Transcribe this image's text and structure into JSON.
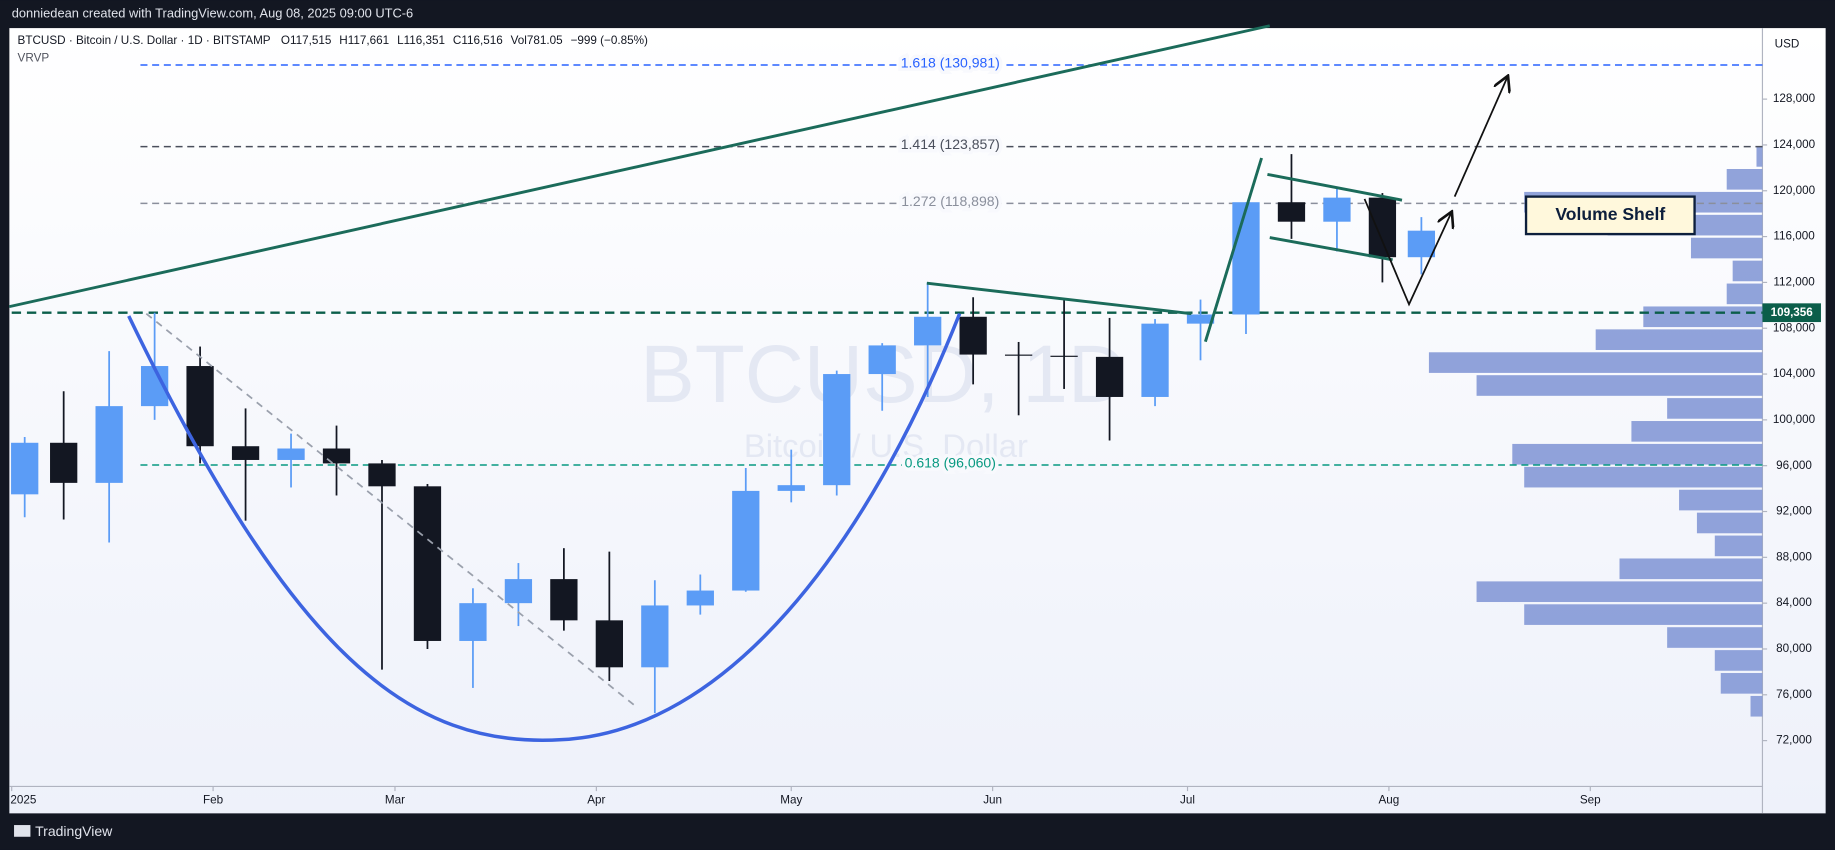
{
  "header": {
    "credit": "donniedean created with TradingView.com, Aug 08, 2025 09:00 UTC-6"
  },
  "footer": {
    "brand": "TradingView"
  },
  "chart_data": {
    "type": "candlestick",
    "legend": {
      "symbol": "BTCUSD · Bitcoin / U.S. Dollar · 1D · BITSTAMP",
      "open": "O117,515",
      "high": "H117,661",
      "low": "L116,351",
      "close": "C116,516",
      "volume": "Vol781.05",
      "change": "−999 (−0.85%)",
      "indicator": "VRVP"
    },
    "currency": "USD",
    "watermark": {
      "symbol": "BTCUSD, 1D",
      "name": "Bitcoin / U.S. Dollar"
    },
    "annotation": "Volume Shelf",
    "up_color": "#5b9cf6",
    "down_color": "#131722",
    "xlim": [
      0,
      269.5
    ],
    "xticks": [
      {
        "value": 0,
        "label": "2025"
      },
      {
        "value": 31,
        "label": "Feb"
      },
      {
        "value": 59,
        "label": "Mar"
      },
      {
        "value": 90,
        "label": "Apr"
      },
      {
        "value": 120,
        "label": "May"
      },
      {
        "value": 151,
        "label": "Jun"
      },
      {
        "value": 181,
        "label": "Jul"
      },
      {
        "value": 212,
        "label": "Aug"
      },
      {
        "value": 243,
        "label": "Sep"
      }
    ],
    "ylim": [
      68000,
      134200
    ],
    "yticks": [
      {
        "value": 72000,
        "label": "72,000"
      },
      {
        "value": 76000,
        "label": "76,000"
      },
      {
        "value": 80000,
        "label": "80,000"
      },
      {
        "value": 84000,
        "label": "84,000"
      },
      {
        "value": 88000,
        "label": "88,000"
      },
      {
        "value": 92000,
        "label": "92,000"
      },
      {
        "value": 96000,
        "label": "96,000"
      },
      {
        "value": 100000,
        "label": "100,000"
      },
      {
        "value": 104000,
        "label": "104,000"
      },
      {
        "value": 108000,
        "label": "108,000"
      },
      {
        "value": 112000,
        "label": "112,000"
      },
      {
        "value": 116000,
        "label": "116,000"
      },
      {
        "value": 120000,
        "label": "120,000"
      },
      {
        "value": 124000,
        "label": "124,000"
      },
      {
        "value": 128000,
        "label": "128,000"
      }
    ],
    "x": [
      2,
      8,
      15,
      22,
      29,
      36,
      43,
      50,
      57,
      64,
      71,
      78,
      85,
      92,
      99,
      106,
      113,
      120,
      127,
      134,
      141,
      148,
      155,
      162,
      169,
      176,
      183,
      190,
      197,
      204,
      211,
      217
    ],
    "open": [
      93500,
      98000,
      94500,
      101200,
      104700,
      97700,
      96500,
      97500,
      96200,
      94200,
      80700,
      84000,
      86100,
      82500,
      78400,
      83800,
      85100,
      93800,
      94300,
      104000,
      106500,
      109000,
      105700,
      105600,
      105500,
      102000,
      108400,
      109200,
      119000,
      117300,
      119400,
      114200
    ],
    "high": [
      98500,
      102500,
      106000,
      109356,
      106400,
      101000,
      98800,
      99500,
      96500,
      94400,
      85300,
      87500,
      88800,
      88500,
      86000,
      86500,
      95800,
      97400,
      104300,
      106700,
      112000,
      110700,
      106800,
      110500,
      108900,
      108800,
      110500,
      119000,
      123200,
      120200,
      119800,
      117700
    ],
    "low": [
      91500,
      91300,
      89300,
      100000,
      96200,
      91200,
      94100,
      93400,
      78200,
      80000,
      76600,
      82000,
      81600,
      77200,
      74400,
      83000,
      85000,
      92800,
      93400,
      100800,
      102000,
      103100,
      100400,
      102700,
      98200,
      101200,
      105200,
      107500,
      115800,
      114700,
      112000,
      112700
    ],
    "close": [
      98000,
      94500,
      101200,
      104700,
      97700,
      96500,
      97500,
      96200,
      94200,
      80700,
      84000,
      86100,
      82500,
      78400,
      83800,
      85100,
      93800,
      94300,
      104000,
      106500,
      109000,
      105700,
      105600,
      105500,
      102000,
      108400,
      109200,
      119000,
      117300,
      119400,
      114200,
      116516
    ],
    "levels": [
      {
        "label": "1.618 (130,981)",
        "value": 130981,
        "color": "#2962ff"
      },
      {
        "label": "1.414 (123,857)",
        "value": 123857,
        "color": "#4a4f5c"
      },
      {
        "label": "1.272 (118,898)",
        "value": 118898,
        "color": "#8a8f9c"
      },
      {
        "label": "0.618 (96,060)",
        "value": 96060,
        "color": "#089981"
      }
    ],
    "price_line": {
      "value": 109356,
      "label": "109,356",
      "color": "#0b5e4a"
    },
    "volume_profile": {
      "color": "#7e93d4",
      "prices": [
        75000,
        77000,
        79000,
        81000,
        83000,
        85000,
        87000,
        89000,
        91000,
        93000,
        95000,
        97000,
        99000,
        101000,
        103000,
        105000,
        107000,
        109000,
        111000,
        113000,
        115000,
        117000,
        119000,
        121000,
        123000
      ],
      "values": [
        10,
        35,
        40,
        80,
        200,
        240,
        120,
        40,
        55,
        70,
        200,
        210,
        110,
        80,
        240,
        280,
        140,
        100,
        30,
        25,
        60,
        130,
        200,
        30,
        5
      ]
    }
  }
}
